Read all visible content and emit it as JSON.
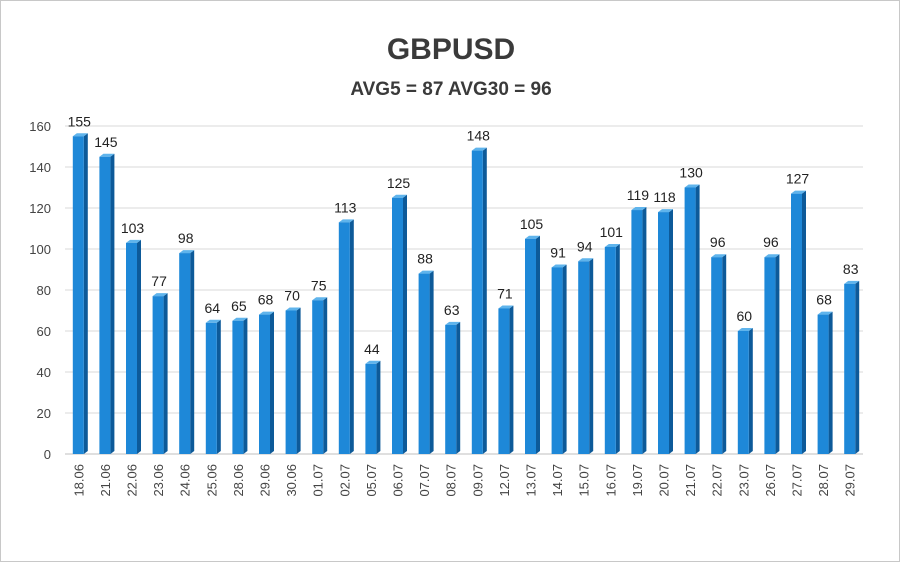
{
  "chart_data": {
    "type": "bar",
    "title": "GBPUSD",
    "subtitle": "AVG5 = 87 AVG30 = 96",
    "categories": [
      "18.06",
      "21.06",
      "22.06",
      "23.06",
      "24.06",
      "25.06",
      "28.06",
      "29.06",
      "30.06",
      "01.07",
      "02.07",
      "05.07",
      "06.07",
      "07.07",
      "08.07",
      "09.07",
      "12.07",
      "13.07",
      "14.07",
      "15.07",
      "16.07",
      "19.07",
      "20.07",
      "21.07",
      "22.07",
      "23.07",
      "26.07",
      "27.07",
      "28.07",
      "29.07"
    ],
    "values": [
      155,
      145,
      103,
      77,
      98,
      64,
      65,
      68,
      70,
      75,
      113,
      44,
      125,
      88,
      63,
      148,
      71,
      105,
      91,
      94,
      101,
      119,
      118,
      130,
      96,
      60,
      96,
      127,
      68,
      83
    ],
    "ylim": [
      0,
      160
    ],
    "yticks": [
      0,
      20,
      40,
      60,
      80,
      100,
      120,
      140,
      160
    ],
    "grid": true,
    "bar_color": "#1e88d8",
    "bar_dark_color": "#0d5a99",
    "grid_color": "#d9d9d9"
  }
}
